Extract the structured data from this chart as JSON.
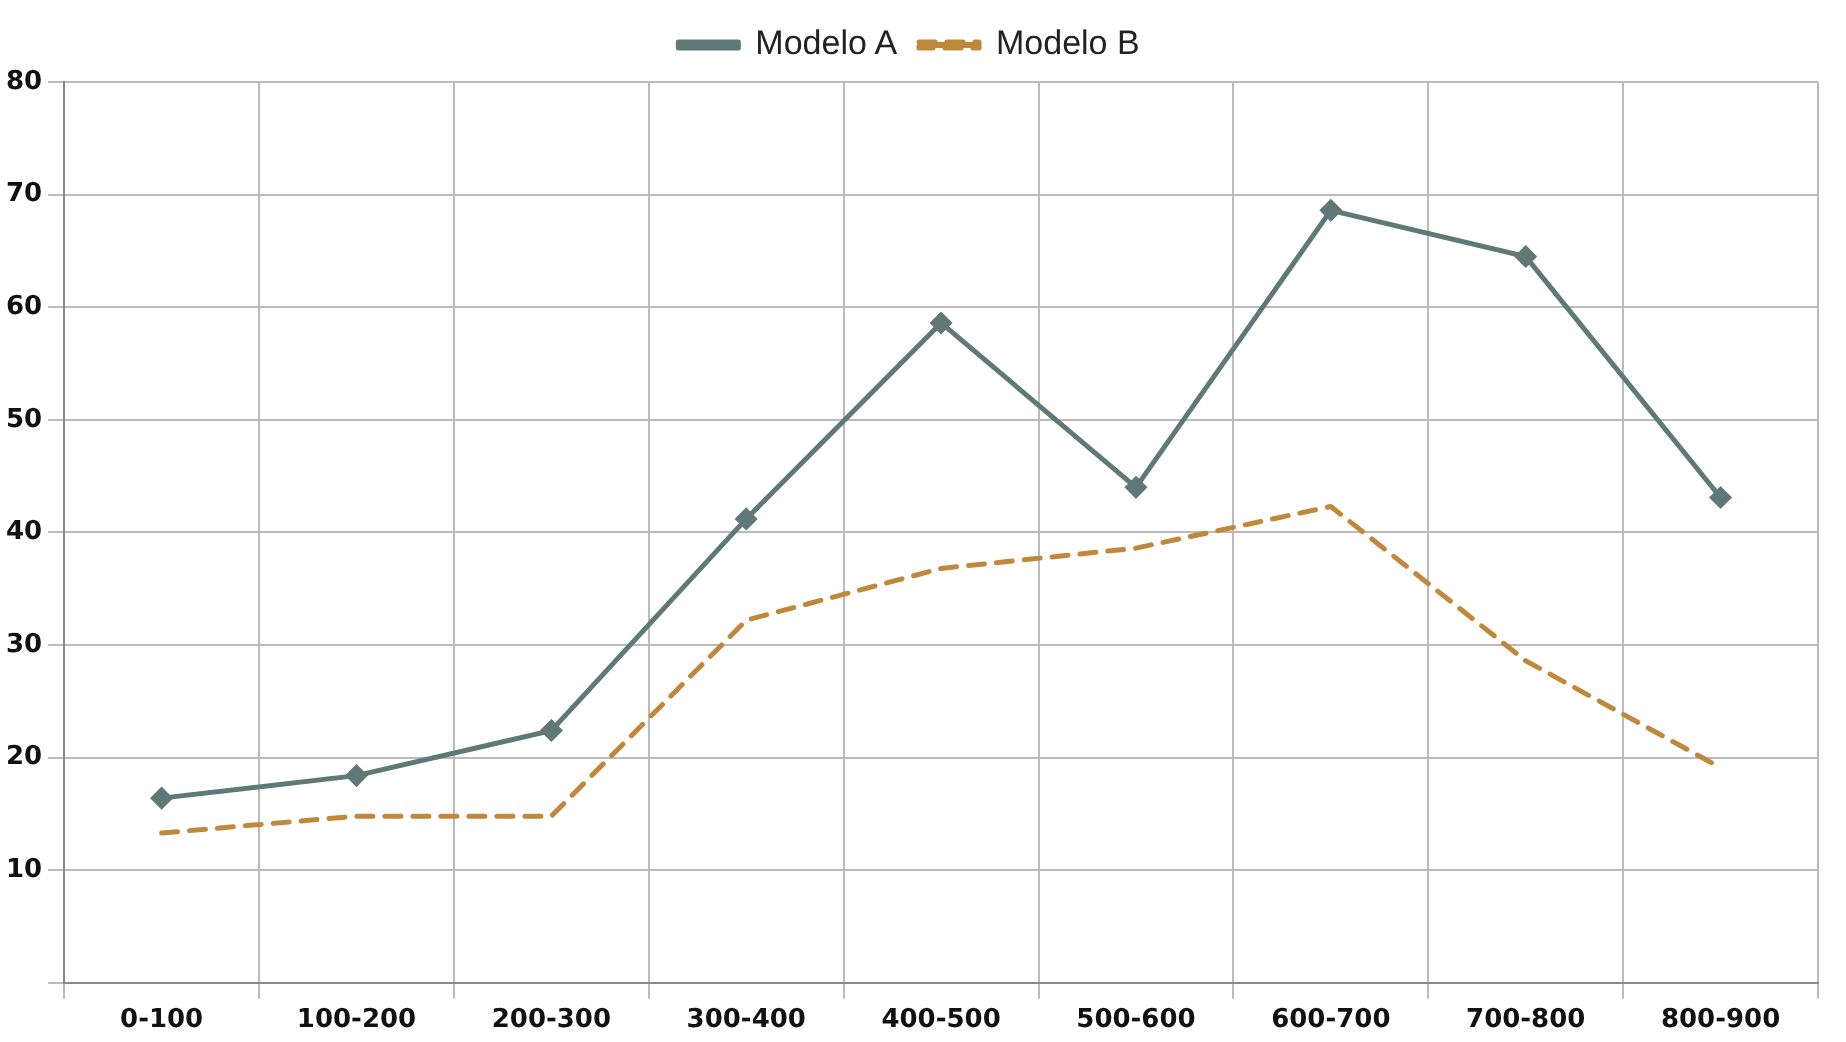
{
  "chart_data": {
    "type": "line",
    "categories": [
      "0-100",
      "100-200",
      "200-300",
      "300-400",
      "400-500",
      "500-600",
      "600-700",
      "700-800",
      "800-900"
    ],
    "series": [
      {
        "name": "Modelo A",
        "color": "#5f7878",
        "marker": "diamond",
        "line_style": "solid",
        "values": [
          16.4,
          18.4,
          22.4,
          41.2,
          58.6,
          44,
          68.6,
          64.5,
          43.1
        ]
      },
      {
        "name": "Modelo B",
        "color": "#c0883a",
        "marker": "none",
        "line_style": "dashed",
        "values": [
          13.3,
          14.8,
          14.8,
          32.2,
          36.8,
          38.6,
          42.3,
          28.6,
          19.1
        ]
      }
    ],
    "ylim": [
      0,
      80
    ],
    "yticks": [
      {
        "value": 0,
        "label": null
      },
      10,
      20,
      30,
      40,
      50,
      60,
      70,
      80
    ],
    "grid": true,
    "legend": "top"
  }
}
